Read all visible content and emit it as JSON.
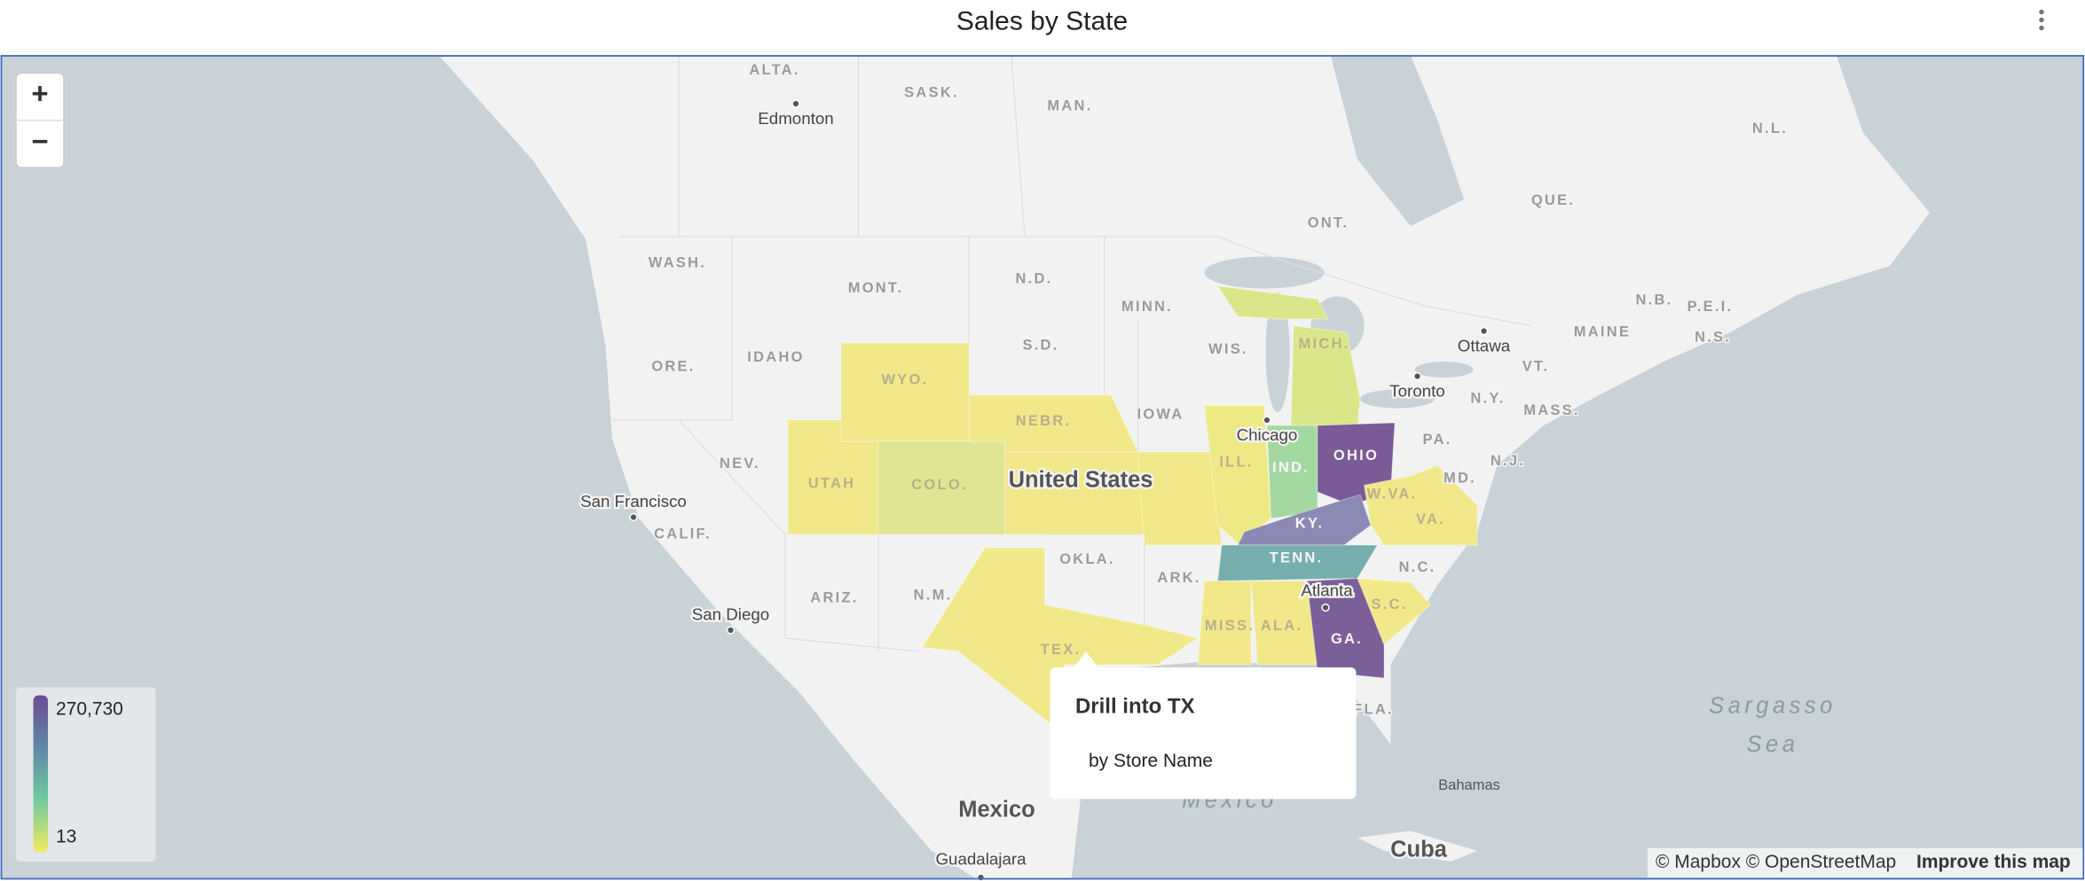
{
  "header": {
    "title": "Sales by State"
  },
  "controls": {
    "zoom_in": "+",
    "zoom_out": "−"
  },
  "map": {
    "labels": [
      "ALTA.",
      "SASK.",
      "MAN.",
      "Edmonton",
      "ONT.",
      "QUE.",
      "N.L.",
      "WASH.",
      "MONT.",
      "N.D.",
      "MINN.",
      "ORE.",
      "IDAHO",
      "S.D.",
      "WIS.",
      "MICH.",
      "Ottawa",
      "MAINE",
      "N.B.",
      "P.E.I.",
      "N.S.",
      "WYO.",
      "NEBR.",
      "IOWA",
      "Toronto",
      "VT.",
      "N.Y.",
      "MASS.",
      "Chicago",
      "NEV.",
      "UTAH",
      "COLO.",
      "United States",
      "ILL.",
      "IND.",
      "OHIO",
      "PA.",
      "N.J.",
      "MD.",
      "W.VA.",
      "VA.",
      "KY.",
      "San Francisco",
      "CALIF.",
      "OKLA.",
      "TENN.",
      "ARK.",
      "N.C.",
      "Atlanta",
      "ARIZ.",
      "N.M.",
      "San Diego",
      "S.C.",
      "MISS.",
      "ALA.",
      "GA.",
      "TEX.",
      "FLA.",
      "Sargasso",
      "Sea",
      "Bahamas",
      "Mexico",
      "Mexico",
      "Cuba",
      "Guadalajara"
    ]
  },
  "legend": {
    "max": "270,730",
    "min": "13"
  },
  "tooltip": {
    "title": "Drill into TX",
    "subtitle": "by Store Name"
  },
  "attribution": {
    "text": "© Mapbox © OpenStreetMap",
    "link": "Improve this map"
  }
}
